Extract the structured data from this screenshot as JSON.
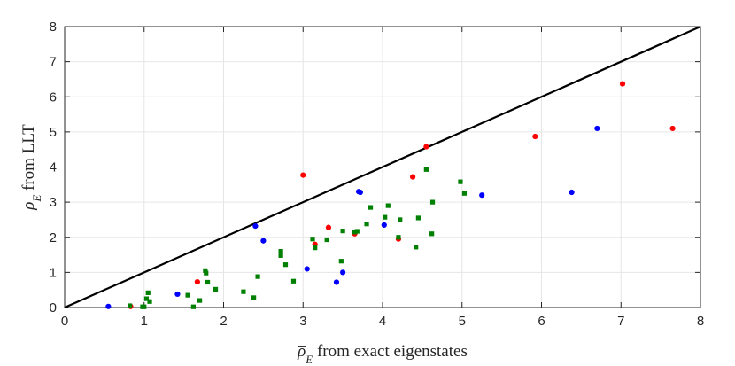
{
  "chart_data": {
    "type": "scatter",
    "title": "",
    "xlabel": {
      "symbol": "ρ",
      "bar": true,
      "subscript": "E",
      "text": " from exact eigenstates"
    },
    "ylabel": {
      "symbol": "ρ",
      "bar": false,
      "subscript": "E",
      "text": " from LLT"
    },
    "xlim": [
      0,
      8
    ],
    "ylim": [
      0,
      8
    ],
    "xticks": [
      "0",
      "1",
      "2",
      "3",
      "4",
      "5",
      "6",
      "7",
      "8"
    ],
    "yticks": [
      "0",
      "1",
      "2",
      "3",
      "4",
      "5",
      "6",
      "7",
      "8"
    ],
    "grid": true,
    "legend": "none",
    "reference_line": {
      "x": [
        0,
        8
      ],
      "y": [
        0,
        8
      ],
      "color": "#000000"
    },
    "series": [
      {
        "marker": "circle",
        "color": "#0000ff",
        "x": [
          0.55,
          1.42,
          2.4,
          2.5,
          3.05,
          3.42,
          3.5,
          3.7,
          3.72,
          4.02,
          5.25,
          6.38,
          6.7
        ],
        "y": [
          0.03,
          0.38,
          2.32,
          1.9,
          1.1,
          0.72,
          1.0,
          3.3,
          3.28,
          2.35,
          3.2,
          3.28,
          5.1
        ]
      },
      {
        "marker": "circle",
        "color": "#ff0000",
        "x": [
          0.83,
          1.67,
          3.0,
          3.15,
          3.32,
          3.65,
          4.2,
          4.38,
          4.55,
          5.92,
          7.02,
          7.65
        ],
        "y": [
          0.03,
          0.73,
          3.77,
          1.8,
          2.28,
          2.1,
          1.95,
          3.72,
          4.58,
          4.87,
          6.37,
          5.1
        ]
      },
      {
        "marker": "square",
        "color": "#008000",
        "x": [
          0.82,
          0.98,
          1.0,
          1.03,
          1.05,
          1.07,
          1.55,
          1.62,
          1.7,
          1.77,
          1.78,
          1.8,
          1.9,
          2.25,
          2.38,
          2.43,
          2.72,
          2.72,
          2.78,
          2.88,
          3.12,
          3.15,
          3.3,
          3.48,
          3.5,
          3.65,
          3.68,
          3.8,
          3.85,
          4.03,
          4.07,
          4.2,
          4.22,
          4.42,
          4.45,
          4.55,
          4.62,
          4.63,
          4.98,
          5.03
        ],
        "y": [
          0.05,
          0.02,
          0.02,
          0.25,
          0.42,
          0.17,
          0.35,
          0.02,
          0.2,
          1.05,
          0.98,
          0.72,
          0.52,
          0.45,
          0.28,
          0.88,
          1.6,
          1.48,
          1.22,
          0.75,
          1.95,
          1.7,
          1.93,
          1.32,
          2.18,
          2.15,
          2.17,
          2.38,
          2.85,
          2.57,
          2.9,
          2.0,
          2.5,
          1.72,
          2.55,
          3.93,
          2.1,
          3.0,
          3.58,
          3.25
        ]
      }
    ]
  }
}
